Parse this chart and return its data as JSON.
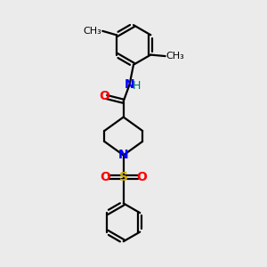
{
  "bg_color": "#ebebeb",
  "bond_color": "#000000",
  "N_color": "#0000ff",
  "O_color": "#ff0000",
  "S_color": "#ccaa00",
  "H_color": "#007070",
  "line_width": 1.6,
  "font_size": 9,
  "fig_size": [
    3.0,
    3.0
  ],
  "dpi": 100,
  "xlim": [
    0,
    10
  ],
  "ylim": [
    0,
    10
  ]
}
